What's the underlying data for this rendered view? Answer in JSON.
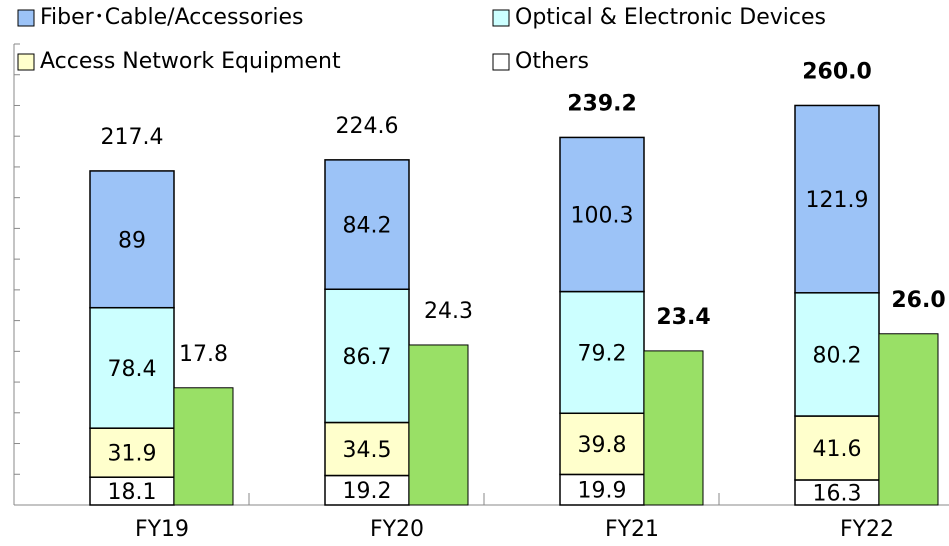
{
  "chart_data": {
    "type": "stacked_bar",
    "categories": [
      "FY19",
      "FY20",
      "FY21",
      "FY22"
    ],
    "series": [
      {
        "name": "Fiber･Cable/Accessories",
        "color": "#9cc3f7",
        "values": [
          89.0,
          84.2,
          100.3,
          121.9
        ]
      },
      {
        "name": "Optical & Electronic Devices",
        "color": "#ccffff",
        "values": [
          78.4,
          86.7,
          79.2,
          80.2
        ]
      },
      {
        "name": "Access Network Equipment",
        "color": "#ffffcc",
        "values": [
          31.9,
          34.5,
          39.8,
          41.6
        ]
      },
      {
        "name": "Others",
        "color": "#ffffff",
        "values": [
          18.1,
          19.2,
          19.9,
          16.3
        ]
      }
    ],
    "totals": {
      "values": [
        217.4,
        224.6,
        239.2,
        260.0
      ],
      "value_labels": [
        "217.4",
        "224.6",
        "239.2",
        "260.0"
      ],
      "bold": [
        false,
        false,
        true,
        true
      ]
    },
    "side_bars": {
      "axis": "y2",
      "color": "#99e066",
      "values": [
        17.8,
        24.3,
        23.4,
        26.0
      ],
      "value_labels": [
        "17.8",
        "24.3",
        "23.4",
        "26.0"
      ],
      "bold": [
        false,
        false,
        true,
        true
      ]
    },
    "ylim": [
      0,
      300
    ],
    "yticks": [
      0,
      20,
      40,
      60,
      80,
      100,
      120,
      140,
      160,
      180,
      200,
      220,
      240,
      260,
      280,
      300
    ],
    "y2lim": [
      0,
      70
    ]
  }
}
